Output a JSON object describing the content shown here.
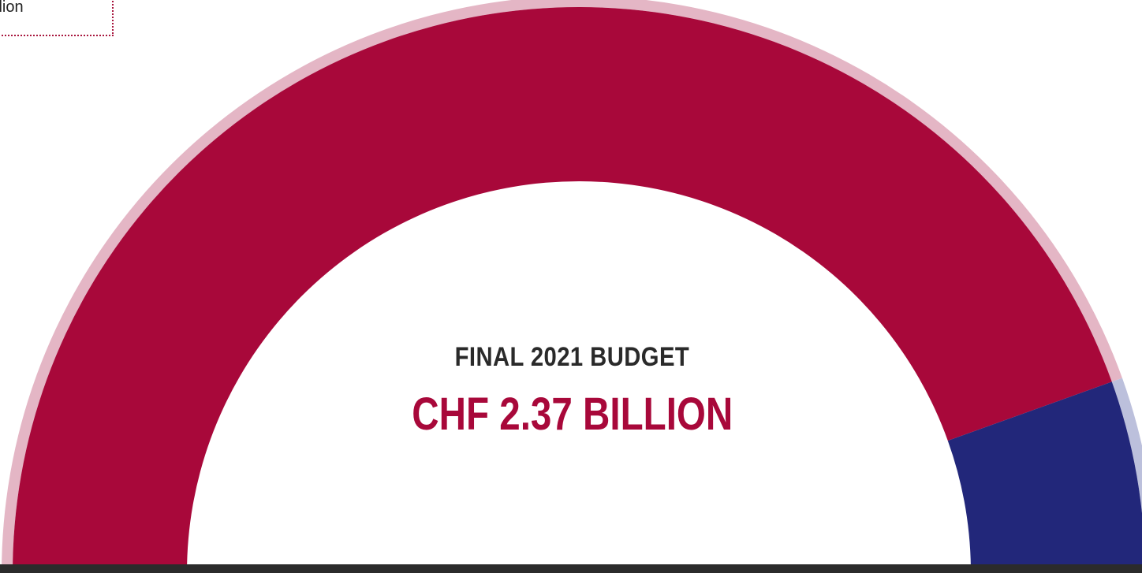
{
  "callout": {
    "text": "llion"
  },
  "center": {
    "title": "FINAL 2021 BUDGET",
    "value": "CHF 2.37 BILLION"
  },
  "colors": {
    "primary": "#a8083a",
    "primary_light": "#e4b6c5",
    "secondary": "#22277a",
    "secondary_light": "#bcc0dc",
    "tertiary": "#7a6a5e",
    "tertiary_light": "#c9b8ab",
    "bottom_bar": "#2b2b2b"
  },
  "chart_data": {
    "type": "pie",
    "title": "FINAL 2021 BUDGET",
    "subtitle": "CHF 2.37 BILLION",
    "values": [
      2.11,
      0.25,
      0.01
    ],
    "series": [
      {
        "color": "#a8083a",
        "ring_color": "#e4b6c5"
      },
      {
        "color": "#22277a",
        "ring_color": "#bcc0dc"
      },
      {
        "color": "#7a6a5e",
        "ring_color": "#c9b8ab"
      }
    ]
  }
}
